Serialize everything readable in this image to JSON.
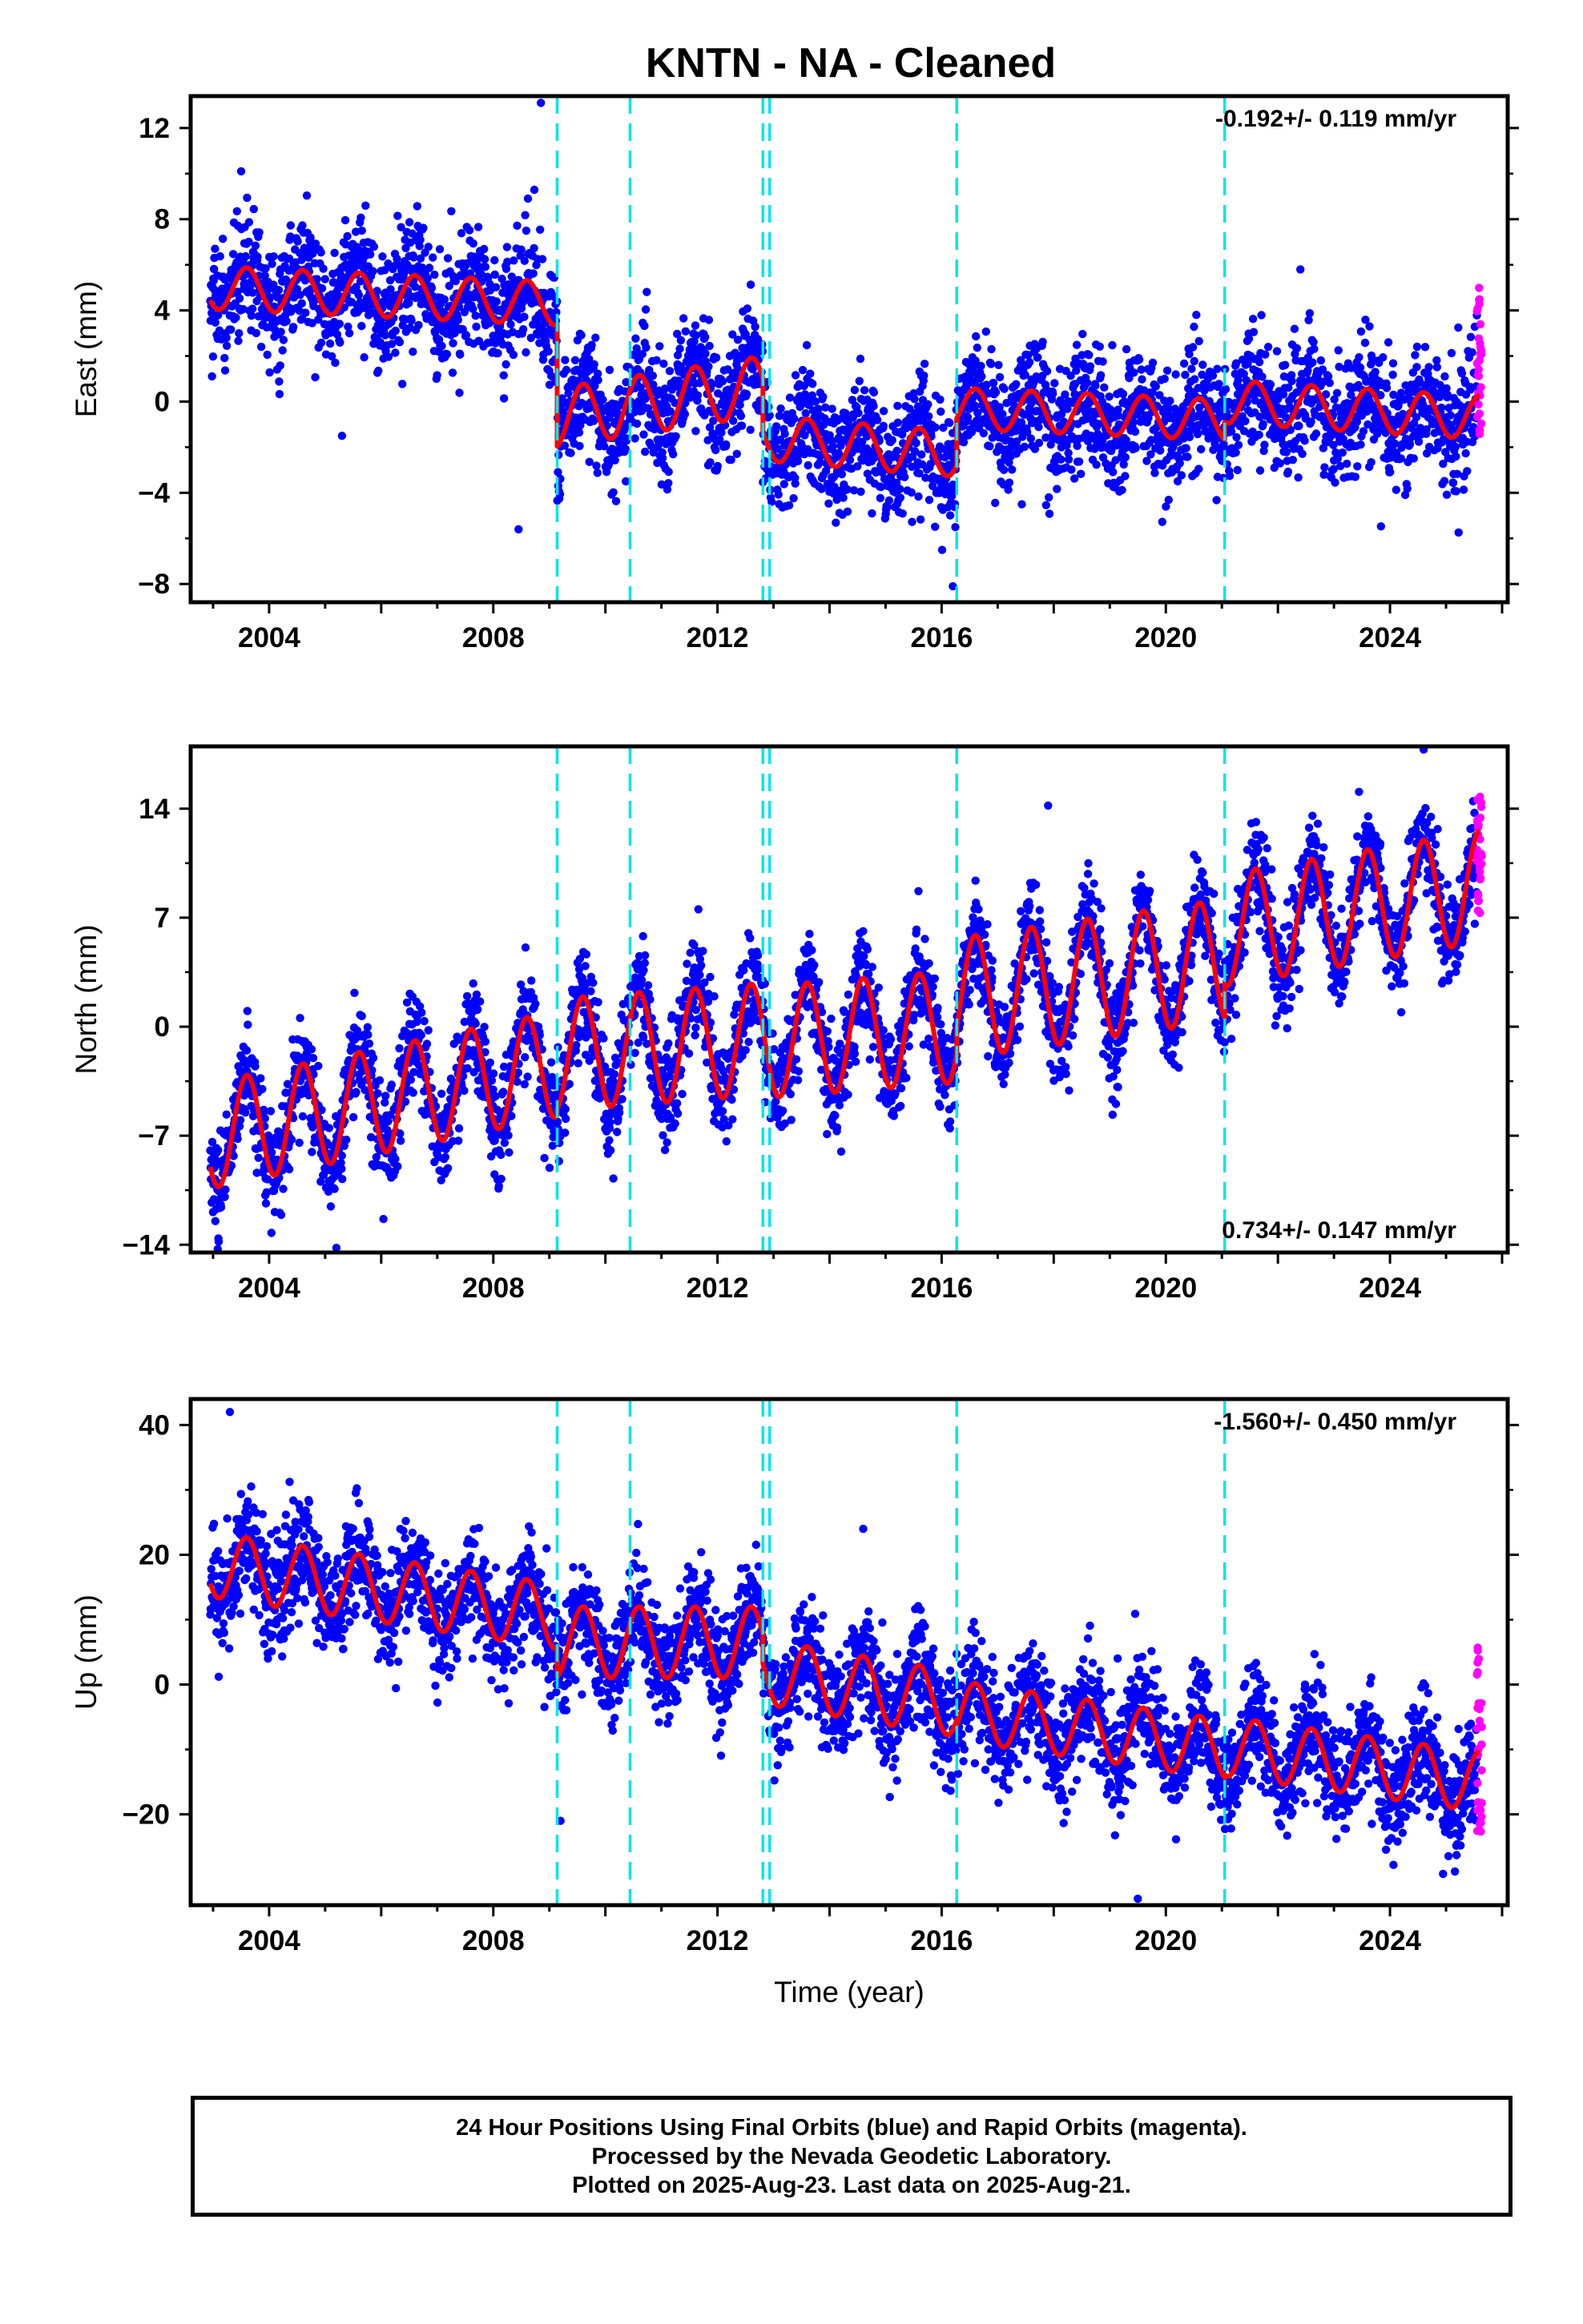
{
  "title": "KNTN  - NA - Cleaned",
  "colors": {
    "final_orbits": "#0000ff",
    "rapid_orbits": "#ff00ff",
    "model_fit": "#ff0000",
    "offsets": "#00e5ee"
  },
  "chart_data": [
    {
      "type": "scatter",
      "component": "east",
      "ylabel": "East (mm)",
      "xlabel": "",
      "xlim": [
        2002.6,
        2026.1
      ],
      "ylim": [
        -8.8,
        13.4
      ],
      "yticks": [
        12,
        8,
        4,
        0,
        -4,
        -8
      ],
      "ytick_labels": [
        "12",
        "8",
        "4",
        "0",
        "−4",
        "−8"
      ],
      "xticks": [
        2004,
        2008,
        2012,
        2016,
        2020,
        2024
      ],
      "xtick_labels": [
        "2004",
        "2008",
        "2012",
        "2016",
        "2020",
        "2024"
      ],
      "rate_label": "-0.192+/- 0.119 mm/yr",
      "rate_position": "top-right",
      "offsets": [
        2009.14,
        2010.44,
        2012.81,
        2012.93,
        2016.27,
        2021.05
      ],
      "model_segments": [
        {
          "x0": 2002.95,
          "x1": 2009.14,
          "base0": 5.0,
          "base1": 4.3,
          "amp": 0.95
        },
        {
          "x0": 2009.14,
          "x1": 2012.81,
          "base0": -0.7,
          "base1": 0.7,
          "amp": 1.3
        },
        {
          "x0": 2012.81,
          "x1": 2016.27,
          "base0": -1.6,
          "base1": -2.3,
          "amp": 1.0
        },
        {
          "x0": 2016.27,
          "x1": 2021.05,
          "base0": -0.3,
          "base1": -0.8,
          "amp": 0.9
        },
        {
          "x0": 2021.05,
          "x1": 2025.6,
          "base0": 0.0,
          "base1": -0.7,
          "amp": 0.95
        }
      ],
      "noise": 1.3,
      "outliers": [
        [
          2008.85,
          13.1
        ],
        [
          2008.45,
          -5.6
        ],
        [
          2005.3,
          -1.5
        ],
        [
          2016.2,
          -8.1
        ],
        [
          2022.4,
          5.8
        ],
        [
          2003.5,
          10.1
        ]
      ],
      "rapid": {
        "x0": 2025.55,
        "x1": 2025.64,
        "ymin": -1.5,
        "ymax": 5.2
      }
    },
    {
      "type": "scatter",
      "component": "north",
      "ylabel": "North (mm)",
      "xlabel": "",
      "xlim": [
        2002.6,
        2026.1
      ],
      "ylim": [
        -14.5,
        18.0
      ],
      "yticks": [
        14,
        7,
        0,
        -7,
        -14
      ],
      "ytick_labels": [
        "14",
        "7",
        "0",
        "−7",
        "−14"
      ],
      "xticks": [
        2004,
        2008,
        2012,
        2016,
        2020,
        2024
      ],
      "xtick_labels": [
        "2004",
        "2008",
        "2012",
        "2016",
        "2020",
        "2024"
      ],
      "rate_label": "0.734+/- 0.147 mm/yr",
      "rate_position": "bottom-right",
      "offsets": [
        2009.14,
        2010.44,
        2012.81,
        2012.93,
        2016.27,
        2021.05
      ],
      "model_segments": [
        {
          "x0": 2002.95,
          "x1": 2009.14,
          "base0": -7.0,
          "base1": -2.4,
          "amp": 3.4
        },
        {
          "x0": 2009.14,
          "x1": 2012.81,
          "base0": -1.8,
          "base1": -0.8,
          "amp": 3.6
        },
        {
          "x0": 2012.81,
          "x1": 2016.27,
          "base0": -1.0,
          "base1": 0.0,
          "amp": 3.6
        },
        {
          "x0": 2016.27,
          "x1": 2021.05,
          "base0": 1.8,
          "base1": 4.3,
          "amp": 3.9
        },
        {
          "x0": 2021.05,
          "x1": 2025.6,
          "base0": 6.2,
          "base1": 9.0,
          "amp": 3.6
        }
      ],
      "noise": 1.6,
      "outliers": [
        [
          2017.9,
          14.2
        ],
        [
          2024.6,
          17.8
        ],
        [
          2003.1,
          -13.8
        ],
        [
          2005.2,
          -14.2
        ]
      ],
      "rapid": {
        "x0": 2025.55,
        "x1": 2025.64,
        "ymin": 7.2,
        "ymax": 14.8
      }
    },
    {
      "type": "scatter",
      "component": "up",
      "ylabel": "Up (mm)",
      "xlabel": "Time (year)",
      "xlim": [
        2002.6,
        2026.1
      ],
      "ylim": [
        -34.0,
        44.0
      ],
      "yticks": [
        40,
        20,
        0,
        -20
      ],
      "ytick_labels": [
        "40",
        "20",
        "0",
        "−20"
      ],
      "xticks": [
        2004,
        2008,
        2012,
        2016,
        2020,
        2024
      ],
      "xtick_labels": [
        "2004",
        "2008",
        "2012",
        "2016",
        "2020",
        "2024"
      ],
      "rate_label": "-1.560+/- 0.450 mm/yr",
      "rate_position": "top-right",
      "offsets": [
        2009.14,
        2010.44,
        2012.81,
        2012.93,
        2016.27,
        2021.05
      ],
      "model_segments": [
        {
          "x0": 2002.95,
          "x1": 2009.14,
          "base0": 18.5,
          "base1": 10.5,
          "amp": 5.0
        },
        {
          "x0": 2009.14,
          "x1": 2012.81,
          "base0": 6.5,
          "base1": 6.5,
          "amp": 5.5
        },
        {
          "x0": 2012.81,
          "x1": 2016.27,
          "base0": 2.0,
          "base1": -3.0,
          "amp": 5.0
        },
        {
          "x0": 2016.27,
          "x1": 2021.05,
          "base0": -4.0,
          "base1": -10.0,
          "amp": 4.6
        },
        {
          "x0": 2021.05,
          "x1": 2025.6,
          "base0": -9.5,
          "base1": -15.0,
          "amp": 4.6
        }
      ],
      "noise": 4.3,
      "outliers": [
        [
          2003.3,
          42.0
        ],
        [
          2009.2,
          -21.0
        ],
        [
          2019.5,
          -33.0
        ],
        [
          2003.1,
          1.2
        ],
        [
          2014.6,
          24.0
        ]
      ],
      "rapid": {
        "x0": 2025.55,
        "x1": 2025.64,
        "ymin": -26.0,
        "ymax": 6.2
      }
    }
  ],
  "footer": {
    "line1": "24 Hour Positions Using Final Orbits (blue) and Rapid Orbits (magenta).",
    "line2": "Processed by the Nevada Geodetic Laboratory.",
    "line3": "Plotted on 2025-Aug-23. Last data on 2025-Aug-21."
  }
}
